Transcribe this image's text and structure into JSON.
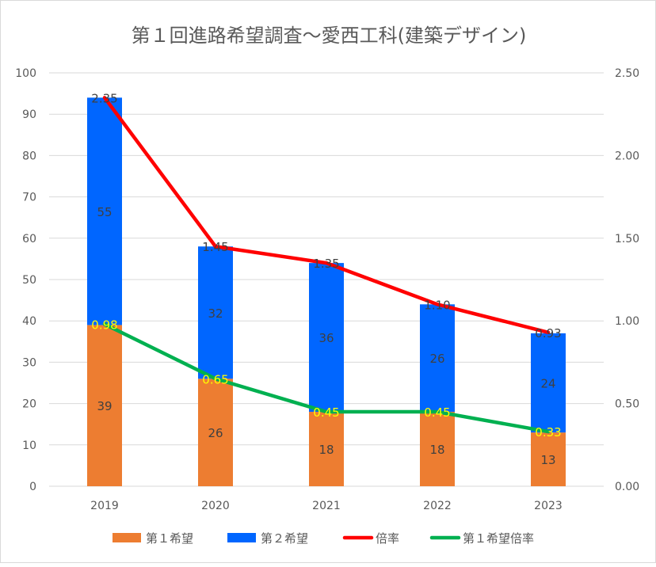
{
  "chart_data": {
    "type": "bar",
    "title": "第１回進路希望調査～愛西工科(建築デザイン)",
    "categories": [
      "2019",
      "2020",
      "2021",
      "2022",
      "2023"
    ],
    "series": [
      {
        "name": "第１希望",
        "kind": "stacked-bar",
        "axis": "left",
        "color": "#ED7D31",
        "values": [
          39,
          26,
          18,
          18,
          13
        ]
      },
      {
        "name": "第２希望",
        "kind": "stacked-bar",
        "axis": "left",
        "color": "#0066FF",
        "values": [
          55,
          32,
          36,
          26,
          24
        ]
      },
      {
        "name": "倍率",
        "kind": "line",
        "axis": "right",
        "color": "#FF0000",
        "values": [
          2.35,
          1.45,
          1.35,
          1.1,
          0.93
        ],
        "labels": [
          "2.35",
          "1.45",
          "1.35",
          "1.10",
          "0.93"
        ]
      },
      {
        "name": "第１希望倍率",
        "kind": "line",
        "axis": "right",
        "color": "#00B050",
        "values": [
          0.98,
          0.65,
          0.45,
          0.45,
          0.33
        ],
        "labels": [
          "0.98",
          "0.65",
          "0.45",
          "0.45",
          "0.33"
        ]
      }
    ],
    "y_left": {
      "range": [
        0,
        100
      ],
      "ticks": [
        "0",
        "10",
        "20",
        "30",
        "40",
        "50",
        "60",
        "70",
        "80",
        "90",
        "100"
      ]
    },
    "y_right": {
      "range": [
        0,
        2.5
      ],
      "ticks": [
        "0.00",
        "0.50",
        "1.00",
        "1.50",
        "2.00",
        "2.50"
      ]
    },
    "grid": true,
    "legend": "bottom"
  }
}
